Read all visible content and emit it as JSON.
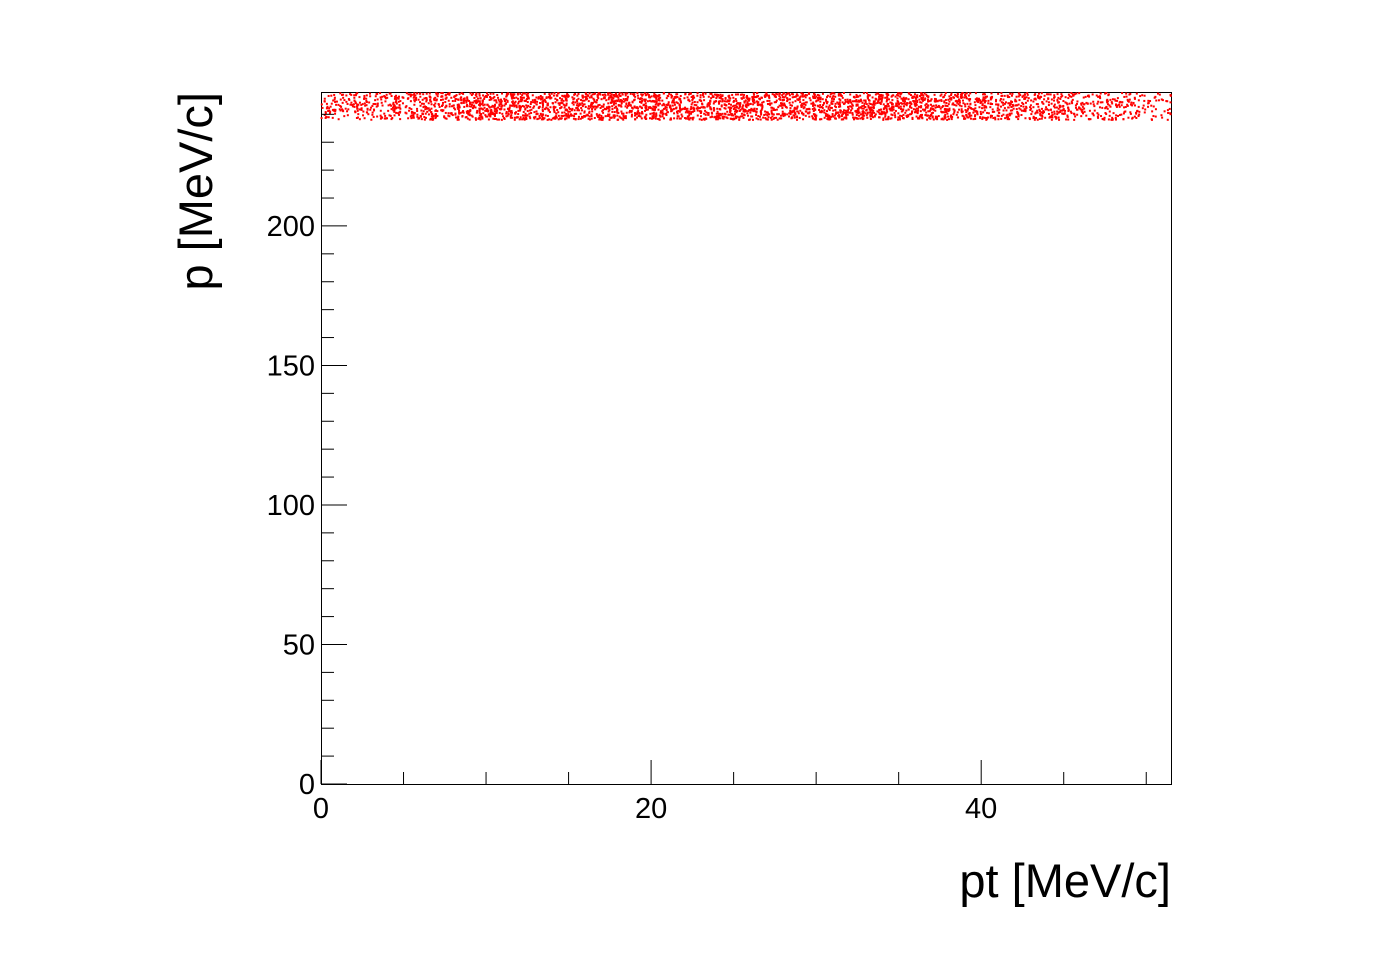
{
  "chart_data": {
    "type": "scatter",
    "xlabel": "pt [MeV/c]",
    "ylabel": "p [MeV/c]",
    "xlim": [
      0,
      51.5
    ],
    "ylim": [
      0,
      248
    ],
    "x_ticks": [
      0,
      20,
      40
    ],
    "y_ticks": [
      0,
      50,
      100,
      150,
      200
    ],
    "grid": false,
    "series": [
      {
        "marker_color": "#ff0000",
        "x_range": [
          0,
          51.5
        ],
        "y_range": [
          238,
          248
        ],
        "description_of_density": "dense band of points, highest density for x between 10 and 35"
      }
    ]
  }
}
